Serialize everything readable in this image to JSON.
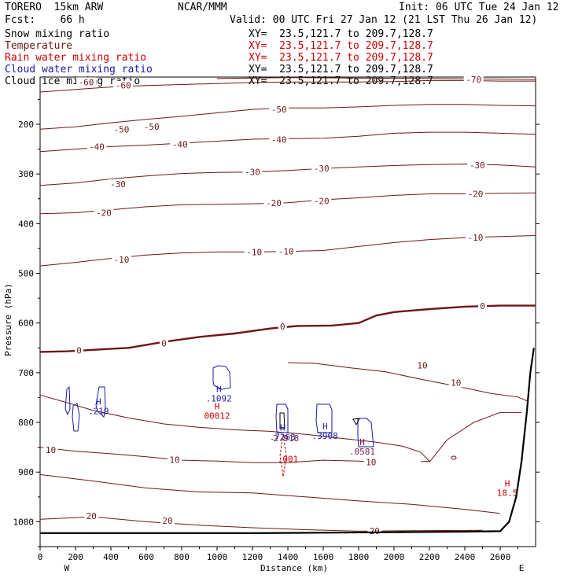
{
  "header": {
    "model": "TORERO  15km ARW",
    "org": "NCAR/MMM",
    "init": "Init: 06 UTC Tue 24 Jan 12",
    "fcst": "Fcst:    66 h",
    "valid": "Valid: 00 UTC Fri 27 Jan 12 (21 LST Thu 26 Jan 12)"
  },
  "colors": {
    "temperature": "#6e1717",
    "snow": "#000000",
    "rain": "#cc0000",
    "cloud_water": "#1a1aaa",
    "cloud_ice": "#000000",
    "terrain": "#000000"
  },
  "chart_data": {
    "type": "contour",
    "title": "Cross-section",
    "xlabel": "Distance (km)",
    "ylabel": "Pressure (hPa)",
    "xlim": [
      0,
      2800
    ],
    "ylim": [
      1050,
      105
    ],
    "x_ticks": [
      0,
      200,
      400,
      600,
      800,
      1000,
      1200,
      1400,
      1600,
      1800,
      2000,
      2200,
      2400,
      2600
    ],
    "y_ticks": [
      200,
      300,
      400,
      500,
      600,
      700,
      800,
      900,
      1000
    ],
    "west_label": "W",
    "east_label": "E",
    "legend": [
      {
        "name": "Snow mixing ratio",
        "color": "#000000",
        "xy": "XY=  23.5,121.7 to 209.7,128.7"
      },
      {
        "name": "Temperature",
        "color": "#6e1717",
        "xy": "XY=  23.5,121.7 to 209.7,128.7"
      },
      {
        "name": "Rain water mixing ratio",
        "color": "#cc0000",
        "xy": "XY=  23.5,121.7 to 209.7,128.7"
      },
      {
        "name": "Cloud water mixing ratio",
        "color": "#1a1aaa",
        "xy": "XY=  23.5,121.7 to 209.7,128.7"
      },
      {
        "name": "Cloud ice mixing ratio",
        "color": "#000000",
        "xy": "XY=  23.5,121.7 to 209.7,128.7"
      }
    ],
    "isotherms": [
      {
        "value": -70,
        "label": "-70",
        "bold": false,
        "points": [
          [
            1000,
            108
          ],
          [
            1400,
            106
          ],
          [
            1800,
            107
          ],
          [
            2200,
            108
          ],
          [
            2600,
            109
          ],
          [
            2800,
            110
          ]
        ]
      },
      {
        "value": -60,
        "label": "-60",
        "bold": false,
        "points": [
          [
            0,
            135
          ],
          [
            200,
            130
          ],
          [
            400,
            125
          ],
          [
            600,
            122
          ],
          [
            800,
            120
          ],
          [
            1000,
            118
          ],
          [
            1200,
            116
          ],
          [
            1400,
            115
          ],
          [
            1600,
            115
          ],
          [
            1800,
            115
          ],
          [
            2000,
            114
          ],
          [
            2200,
            112
          ],
          [
            2400,
            112
          ],
          [
            2600,
            113
          ],
          [
            2800,
            113
          ]
        ]
      },
      {
        "value": -50,
        "label": "-50",
        "bold": false,
        "points": [
          [
            0,
            210
          ],
          [
            200,
            205
          ],
          [
            400,
            197
          ],
          [
            600,
            190
          ],
          [
            800,
            184
          ],
          [
            1000,
            177
          ],
          [
            1200,
            170
          ],
          [
            1400,
            167
          ],
          [
            1600,
            167
          ],
          [
            1800,
            165
          ],
          [
            2000,
            162
          ],
          [
            2200,
            160
          ],
          [
            2400,
            160
          ],
          [
            2600,
            162
          ],
          [
            2800,
            163
          ]
        ]
      },
      {
        "value": -40,
        "label": "-40",
        "bold": false,
        "points": [
          [
            0,
            255
          ],
          [
            200,
            250
          ],
          [
            400,
            245
          ],
          [
            600,
            242
          ],
          [
            800,
            238
          ],
          [
            1000,
            234
          ],
          [
            1200,
            230
          ],
          [
            1400,
            229
          ],
          [
            1600,
            228
          ],
          [
            1800,
            224
          ],
          [
            2000,
            218
          ],
          [
            2200,
            216
          ],
          [
            2400,
            216
          ],
          [
            2600,
            218
          ],
          [
            2800,
            220
          ]
        ]
      },
      {
        "value": -30,
        "label": "-30",
        "bold": false,
        "points": [
          [
            0,
            323
          ],
          [
            200,
            318
          ],
          [
            400,
            310
          ],
          [
            600,
            304
          ],
          [
            800,
            299
          ],
          [
            1000,
            297
          ],
          [
            1200,
            296
          ],
          [
            1400,
            293
          ],
          [
            1600,
            289
          ],
          [
            1800,
            286
          ],
          [
            2000,
            283
          ],
          [
            2200,
            281
          ],
          [
            2400,
            280
          ],
          [
            2600,
            282
          ],
          [
            2800,
            286
          ]
        ]
      },
      {
        "value": -20,
        "label": "-20",
        "bold": false,
        "points": [
          [
            0,
            380
          ],
          [
            200,
            378
          ],
          [
            400,
            372
          ],
          [
            600,
            366
          ],
          [
            800,
            362
          ],
          [
            1000,
            361
          ],
          [
            1200,
            360
          ],
          [
            1400,
            358
          ],
          [
            1600,
            352
          ],
          [
            1800,
            348
          ],
          [
            2000,
            343
          ],
          [
            2200,
            340
          ],
          [
            2400,
            340
          ],
          [
            2600,
            339
          ],
          [
            2800,
            338
          ]
        ]
      },
      {
        "value": -10,
        "label": "-10",
        "bold": false,
        "points": [
          [
            0,
            485
          ],
          [
            200,
            478
          ],
          [
            400,
            470
          ],
          [
            600,
            463
          ],
          [
            800,
            459
          ],
          [
            1000,
            457
          ],
          [
            1200,
            457
          ],
          [
            1400,
            456
          ],
          [
            1600,
            454
          ],
          [
            1800,
            446
          ],
          [
            2000,
            438
          ],
          [
            2200,
            432
          ],
          [
            2400,
            428
          ],
          [
            2600,
            426
          ],
          [
            2800,
            424
          ]
        ]
      },
      {
        "value": 0,
        "label": "0",
        "bold": true,
        "points": [
          [
            0,
            658
          ],
          [
            150,
            657
          ],
          [
            300,
            654
          ],
          [
            500,
            650
          ],
          [
            700,
            638
          ],
          [
            900,
            628
          ],
          [
            1100,
            621
          ],
          [
            1300,
            611
          ],
          [
            1450,
            606
          ],
          [
            1650,
            605
          ],
          [
            1800,
            600
          ],
          [
            1900,
            585
          ],
          [
            2000,
            578
          ],
          [
            2200,
            572
          ],
          [
            2400,
            567
          ],
          [
            2600,
            565
          ],
          [
            2800,
            565
          ]
        ]
      }
    ],
    "labels": [
      {
        "x": 260,
        "y": 115,
        "text": "-60"
      },
      {
        "x": 470,
        "y": 122,
        "text": "-60"
      },
      {
        "x": 2450,
        "y": 110,
        "text": "-70"
      },
      {
        "x": 460,
        "y": 210,
        "text": "-50"
      },
      {
        "x": 630,
        "y": 205,
        "text": "-50"
      },
      {
        "x": 1350,
        "y": 170,
        "text": "-50"
      },
      {
        "x": 320,
        "y": 245,
        "text": "-40"
      },
      {
        "x": 790,
        "y": 240,
        "text": "-40"
      },
      {
        "x": 1350,
        "y": 231,
        "text": "-40"
      },
      {
        "x": 440,
        "y": 320,
        "text": "-30"
      },
      {
        "x": 1200,
        "y": 296,
        "text": "-30"
      },
      {
        "x": 1590,
        "y": 289,
        "text": "-30"
      },
      {
        "x": 2470,
        "y": 282,
        "text": "-30"
      },
      {
        "x": 360,
        "y": 378,
        "text": "-20"
      },
      {
        "x": 1320,
        "y": 358,
        "text": "-20"
      },
      {
        "x": 1590,
        "y": 354,
        "text": "-20"
      },
      {
        "x": 2460,
        "y": 340,
        "text": "-20"
      },
      {
        "x": 460,
        "y": 472,
        "text": "-10"
      },
      {
        "x": 1210,
        "y": 457,
        "text": "-10"
      },
      {
        "x": 1390,
        "y": 456,
        "text": "-10"
      },
      {
        "x": 2460,
        "y": 428,
        "text": "-10"
      },
      {
        "x": 220,
        "y": 655,
        "text": "0"
      },
      {
        "x": 700,
        "y": 641,
        "text": "0"
      },
      {
        "x": 1370,
        "y": 607,
        "text": "0"
      },
      {
        "x": 2500,
        "y": 566,
        "text": "0"
      }
    ],
    "warm_contours": [
      {
        "value": 10,
        "label": "10",
        "points": [
          [
            0,
            850
          ],
          [
            200,
            858
          ],
          [
            400,
            863
          ],
          [
            600,
            869
          ],
          [
            800,
            876
          ],
          [
            1000,
            878
          ],
          [
            1200,
            881
          ],
          [
            1400,
            881
          ],
          [
            1600,
            876
          ],
          [
            1800,
            878
          ],
          [
            1900,
            880
          ]
        ]
      },
      {
        "value": 10,
        "label": "10",
        "points": [
          [
            0,
            745
          ],
          [
            150,
            760
          ],
          [
            300,
            776
          ],
          [
            500,
            791
          ],
          [
            700,
            803
          ],
          [
            900,
            810
          ],
          [
            1100,
            815
          ],
          [
            1300,
            818
          ],
          [
            1500,
            824
          ],
          [
            1700,
            832
          ],
          [
            1900,
            840
          ],
          [
            2050,
            848
          ],
          [
            2150,
            860
          ],
          [
            2200,
            878
          ],
          [
            2150,
            879
          ]
        ]
      },
      {
        "value": 10,
        "label": "10",
        "points": [
          [
            1400,
            680
          ],
          [
            1550,
            681
          ],
          [
            1750,
            690
          ],
          [
            1950,
            698
          ],
          [
            2150,
            713
          ],
          [
            2350,
            727
          ],
          [
            2550,
            742
          ],
          [
            2700,
            749
          ],
          [
            2760,
            758
          ]
        ]
      },
      {
        "value": 10,
        "label": "10",
        "points": [
          [
            2200,
            880
          ],
          [
            2300,
            835
          ],
          [
            2450,
            800
          ],
          [
            2600,
            780
          ],
          [
            2720,
            780
          ]
        ]
      },
      {
        "value": 20,
        "label": "20",
        "points": [
          [
            0,
            905
          ],
          [
            300,
            918
          ],
          [
            600,
            932
          ],
          [
            900,
            940
          ],
          [
            1200,
            942
          ],
          [
            1500,
            950
          ],
          [
            1800,
            958
          ],
          [
            2100,
            965
          ],
          [
            2400,
            975
          ],
          [
            2600,
            983
          ]
        ]
      },
      {
        "value": 20,
        "label": "20",
        "points": [
          [
            0,
            995
          ],
          [
            300,
            990
          ],
          [
            600,
            1000
          ],
          [
            900,
            1007
          ],
          [
            1200,
            1012
          ],
          [
            1500,
            1016
          ],
          [
            1800,
            1019
          ],
          [
            2100,
            1018
          ],
          [
            2500,
            1017
          ]
        ]
      }
    ],
    "warm_labels": [
      {
        "x": 60,
        "y": 855,
        "text": "10"
      },
      {
        "x": 760,
        "y": 875,
        "text": "10"
      },
      {
        "x": 1870,
        "y": 880,
        "text": "10"
      },
      {
        "x": 2160,
        "y": 685,
        "text": "10"
      },
      {
        "x": 2350,
        "y": 720,
        "text": "10"
      },
      {
        "x": 290,
        "y": 988,
        "text": "20"
      },
      {
        "x": 720,
        "y": 998,
        "text": "20"
      },
      {
        "x": 1890,
        "y": 1018,
        "text": "20"
      }
    ],
    "maxima": [
      {
        "x": 330,
        "y": 780,
        "text": ".219",
        "color": "#1a1aaa",
        "h": true
      },
      {
        "x": 1010,
        "y": 755,
        "text": ".1092",
        "color": "#1a1aaa",
        "h": true
      },
      {
        "x": 1000,
        "y": 790,
        "text": "00012",
        "color": "#cc0000",
        "h": true
      },
      {
        "x": 1370,
        "y": 832,
        "text": ".7263",
        "color": "#1a1aaa",
        "h": true
      },
      {
        "x": 1390,
        "y": 835,
        "text": "2.918",
        "color": "#7a1a5a",
        "h": false
      },
      {
        "x": 1400,
        "y": 877,
        "text": ".001",
        "color": "#cc0000",
        "h": false
      },
      {
        "x": 1610,
        "y": 830,
        "text": ".3908",
        "color": "#1a1aaa",
        "h": true
      },
      {
        "x": 1820,
        "y": 862,
        "text": ".0581",
        "color": "#7a1a5a",
        "h": true
      },
      {
        "x": 2640,
        "y": 945,
        "text": "18.5",
        "color": "#cc0000",
        "h": true
      }
    ],
    "terrain": [
      [
        0,
        1023
      ],
      [
        400,
        1023
      ],
      [
        800,
        1023
      ],
      [
        1200,
        1023
      ],
      [
        1600,
        1022
      ],
      [
        2000,
        1021
      ],
      [
        2400,
        1020
      ],
      [
        2600,
        1019
      ],
      [
        2650,
        1000
      ],
      [
        2690,
        950
      ],
      [
        2720,
        880
      ],
      [
        2750,
        780
      ],
      [
        2770,
        700
      ],
      [
        2790,
        650
      ]
    ]
  }
}
